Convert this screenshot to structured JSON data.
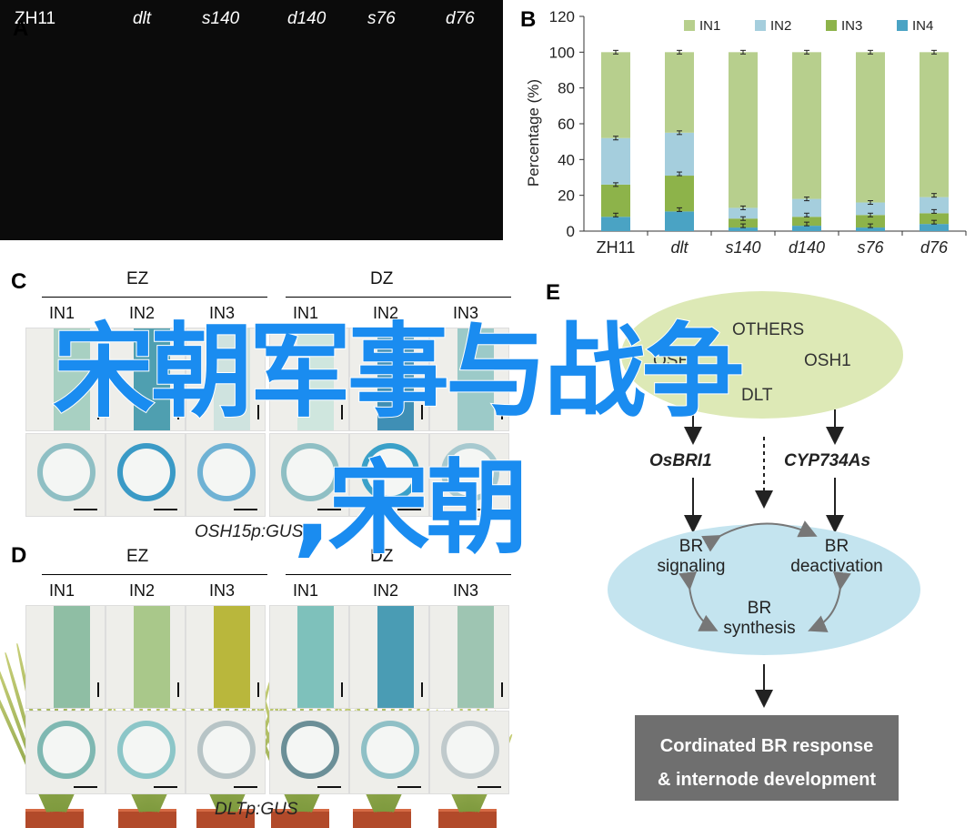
{
  "panelA": {
    "letter": "A",
    "plants": [
      "ZH11",
      "dlt",
      "s140",
      "d140",
      "s76",
      "d76"
    ]
  },
  "panelB": {
    "letter": "B",
    "chart_data": {
      "type": "bar",
      "stacked": true,
      "categories": [
        "ZH11",
        "dlt",
        "s140",
        "d140",
        "s76",
        "d76"
      ],
      "series": [
        {
          "name": "IN4",
          "color": "#4aa3c4",
          "values": [
            8,
            11,
            2,
            3,
            2,
            4
          ]
        },
        {
          "name": "IN3",
          "color": "#8db34a",
          "values": [
            18,
            20,
            5,
            5,
            7,
            6
          ]
        },
        {
          "name": "IN2",
          "color": "#a5cedd",
          "values": [
            26,
            24,
            6,
            10,
            7,
            9
          ]
        },
        {
          "name": "IN1",
          "color": "#b7cf8d",
          "values": [
            48,
            45,
            87,
            82,
            84,
            81
          ]
        }
      ],
      "error_tops": [
        [
          9,
          26,
          52,
          100
        ],
        [
          12,
          32,
          55,
          100
        ],
        [
          3,
          7,
          13,
          100
        ],
        [
          4,
          9,
          18,
          100
        ],
        [
          3,
          9,
          16,
          100
        ],
        [
          5,
          11,
          20,
          100
        ]
      ],
      "ylabel": "Percentage (%)",
      "ylim": [
        0,
        120
      ],
      "yticks": [
        "0",
        "20",
        "40",
        "60",
        "80",
        "100",
        "120"
      ],
      "legend": [
        "IN1",
        "IN2",
        "IN3",
        "IN4"
      ],
      "legend_position": "top"
    }
  },
  "panelC": {
    "letter": "C",
    "groups": [
      "EZ",
      "DZ"
    ],
    "internodes": [
      "IN1",
      "IN2",
      "IN3"
    ],
    "caption": "OSH15p:GUS"
  },
  "panelD": {
    "letter": "D",
    "groups": [
      "EZ",
      "DZ"
    ],
    "internodes": [
      "IN1",
      "IN2",
      "IN3"
    ],
    "caption": "DLTp:GUS"
  },
  "panelE": {
    "letter": "E",
    "top_nodes": [
      "OTHERS",
      "OSH1",
      "OSH1",
      "DLT"
    ],
    "genes": [
      "OsBRI1",
      "CYP734As"
    ],
    "cycle": {
      "signaling": [
        "BR",
        "signaling"
      ],
      "deactivation": [
        "BR",
        "deactivation"
      ],
      "synthesis": [
        "BR",
        "synthesis"
      ]
    },
    "response": [
      "Cordinated BR response",
      "& internode development"
    ]
  },
  "overlay": {
    "line1": "宋朝军事与战争",
    "line2": ",宋朝",
    "color": "#1a8cf0"
  }
}
